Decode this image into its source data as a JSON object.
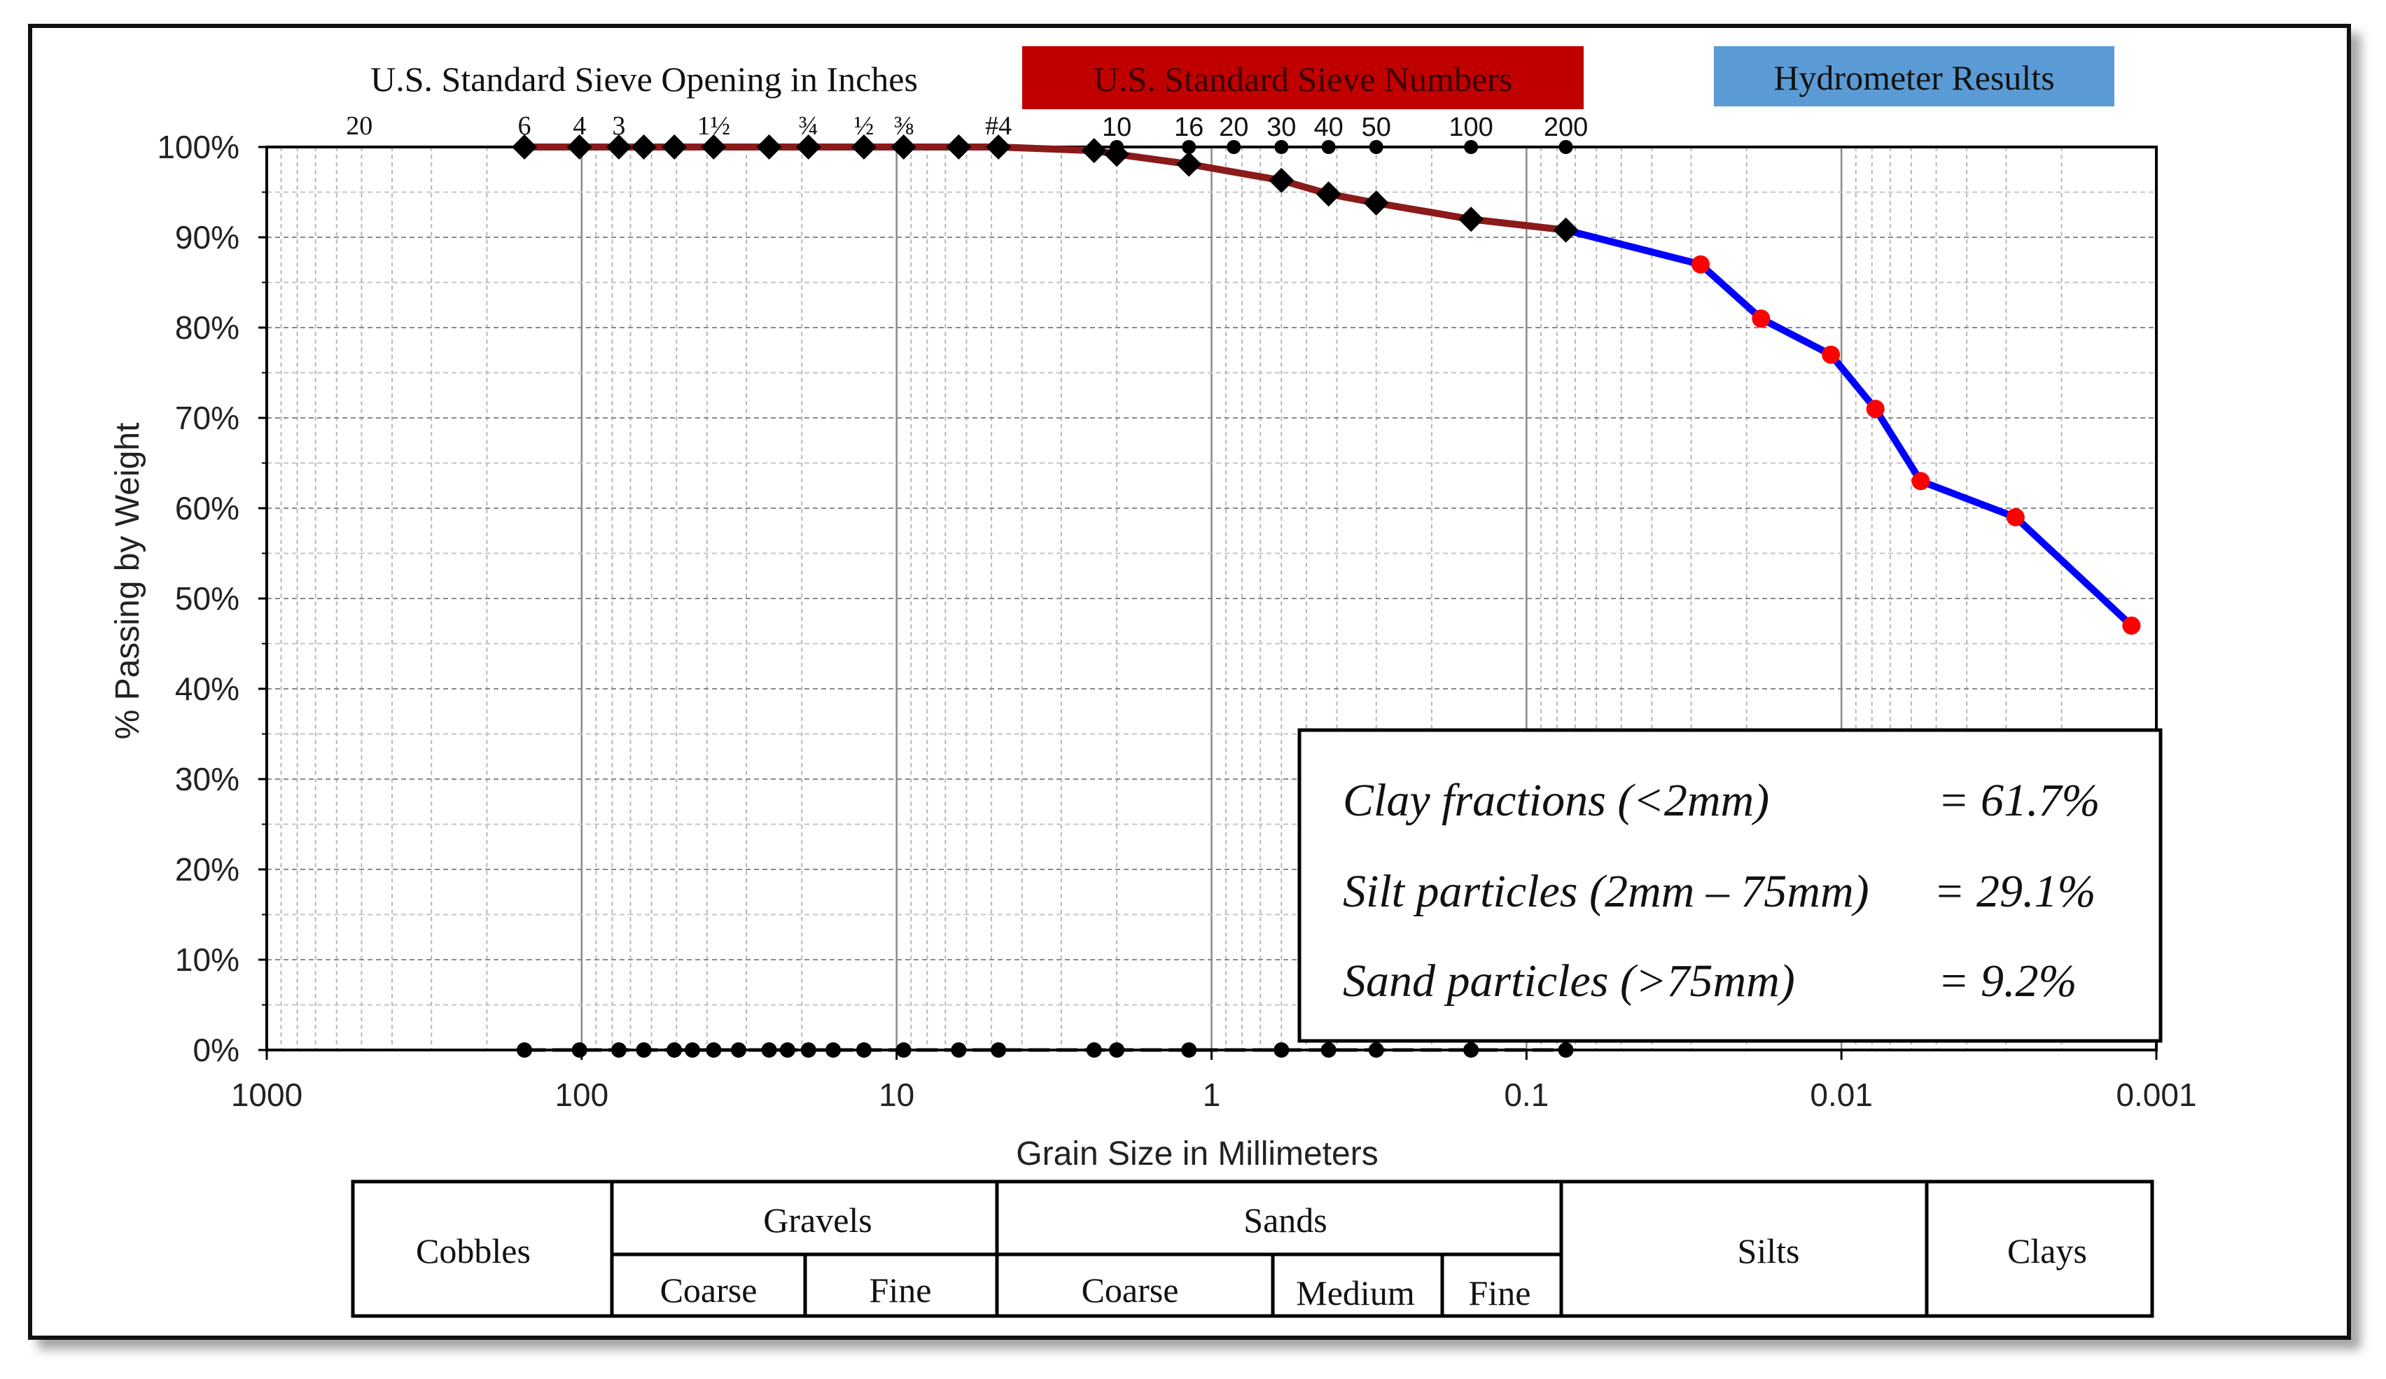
{
  "chart_data": {
    "type": "line",
    "x_scale": "log",
    "x_reversed": true,
    "xlim": [
      1000,
      0.001
    ],
    "ylim": [
      0,
      100
    ],
    "xlabel": "Grain Size in Millimeters",
    "ylabel": "% Passing by Weight",
    "x_ticks": [
      "1000",
      "100",
      "10",
      "1",
      "0.1",
      "0.01",
      "0.001"
    ],
    "y_ticks": [
      "0%",
      "10%",
      "20%",
      "30%",
      "40%",
      "50%",
      "60%",
      "70%",
      "80%",
      "90%",
      "100%"
    ],
    "grid": true,
    "top_headers": {
      "sieve_inches_title": "U.S. Standard Sieve Opening in Inches",
      "sieve_numbers_title": "U.S. Standard Sieve Numbers",
      "hydrometer_title": "Hydrometer Results",
      "sieve_numbers_color": "#c00000",
      "hydrometer_color": "#5b9bd5"
    },
    "inch_labels": [
      {
        "label": "20",
        "x": 508
      },
      {
        "label": "6",
        "x": 152
      },
      {
        "label": "4",
        "x": 101.6
      },
      {
        "label": "3",
        "x": 76.2
      },
      {
        "label": "1½",
        "x": 38.1
      },
      {
        "label": "¾",
        "x": 19.05
      },
      {
        "label": "½",
        "x": 12.7
      },
      {
        "label": "⅜",
        "x": 9.5
      },
      {
        "label": "#4",
        "x": 4.75
      }
    ],
    "sieve_number_labels": [
      {
        "label": "10",
        "x": 2.0
      },
      {
        "label": "16",
        "x": 1.18
      },
      {
        "label": "20",
        "x": 0.85
      },
      {
        "label": "30",
        "x": 0.6
      },
      {
        "label": "40",
        "x": 0.425
      },
      {
        "label": "50",
        "x": 0.3
      },
      {
        "label": "100",
        "x": 0.15
      },
      {
        "label": "200",
        "x": 0.075
      }
    ],
    "series": [
      {
        "color": "#8b1a1a",
        "marker_color": "#000000",
        "points": [
          [
            152,
            100
          ],
          [
            101.6,
            100
          ],
          [
            76.2,
            100
          ],
          [
            63.5,
            100
          ],
          [
            50.8,
            100
          ],
          [
            38.1,
            100
          ],
          [
            25.4,
            100
          ],
          [
            19.05,
            100
          ],
          [
            12.7,
            100
          ],
          [
            9.5,
            100
          ],
          [
            6.35,
            100
          ],
          [
            4.75,
            100
          ],
          [
            2.36,
            99.6
          ],
          [
            2.0,
            99.2
          ],
          [
            1.18,
            98.1
          ],
          [
            0.6,
            96.3
          ],
          [
            0.425,
            94.8
          ],
          [
            0.3,
            93.8
          ],
          [
            0.15,
            92.0
          ],
          [
            0.075,
            90.8
          ]
        ]
      },
      {
        "color": "#0000ff",
        "marker_color": "#ff0000",
        "points": [
          [
            0.075,
            90.8
          ],
          [
            0.028,
            87.0
          ],
          [
            0.018,
            81.0
          ],
          [
            0.0108,
            77.0
          ],
          [
            0.0078,
            71.0
          ],
          [
            0.0056,
            63.0
          ],
          [
            0.0028,
            59.0
          ],
          [
            0.0012,
            47.0
          ]
        ]
      }
    ],
    "zero_markers_x": [
      152,
      101.6,
      76.2,
      63.5,
      50.8,
      44.5,
      38.1,
      31.75,
      25.4,
      22.2,
      19.05,
      15.9,
      12.7,
      9.5,
      6.35,
      4.75,
      2.36,
      2.0,
      1.18,
      0.6,
      0.425,
      0.3,
      0.15,
      0.075
    ],
    "summary": [
      {
        "label": "Clay fractions (<2mm)",
        "value": "= 61.7%"
      },
      {
        "label": "Silt particles (2mm – 75mm)",
        "value": "= 29.1%"
      },
      {
        "label": "Sand particles (>75mm)",
        "value": "= 9.2%"
      }
    ],
    "classification": {
      "cobbles": "Cobbles",
      "gravels": "Gravels",
      "gravels_coarse": "Coarse",
      "gravels_fine": "Fine",
      "sands": "Sands",
      "sands_coarse": "Coarse",
      "sands_medium": "Medium",
      "sands_fine": "Fine",
      "silts": "Silts",
      "clays": "Clays"
    }
  }
}
